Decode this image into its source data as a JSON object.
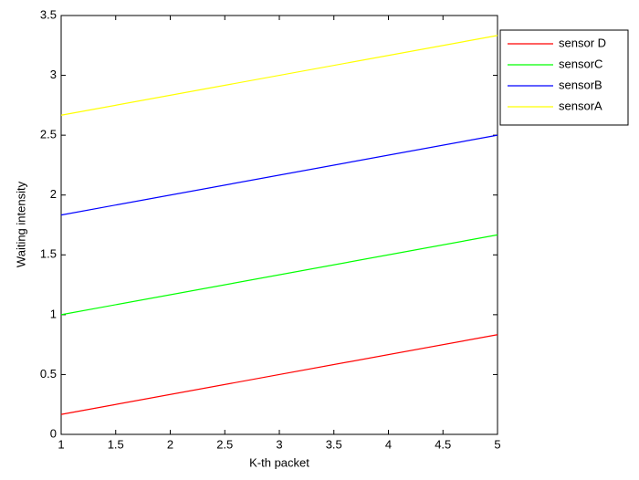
{
  "chart_data": {
    "type": "line",
    "xlabel": "K-th packet",
    "ylabel": "Waiting intensity",
    "x": [
      1,
      5
    ],
    "series": [
      {
        "name": "sensor D",
        "color": "#ff0000",
        "values": [
          0.167,
          0.833
        ]
      },
      {
        "name": "sensorC",
        "color": "#00ff00",
        "values": [
          1.0,
          1.667
        ]
      },
      {
        "name": "sensorB",
        "color": "#0000ff",
        "values": [
          1.833,
          2.5
        ]
      },
      {
        "name": "sensorA",
        "color": "#ffff00",
        "values": [
          2.667,
          3.333
        ]
      }
    ],
    "xlim": [
      1,
      5
    ],
    "xticks": [
      1,
      1.5,
      2,
      2.5,
      3,
      3.5,
      4,
      4.5,
      5
    ],
    "ylim": [
      0,
      3.5
    ],
    "yticks": [
      0,
      0.5,
      1,
      1.5,
      2,
      2.5,
      3,
      3.5
    ],
    "grid": false,
    "legend": "right"
  }
}
